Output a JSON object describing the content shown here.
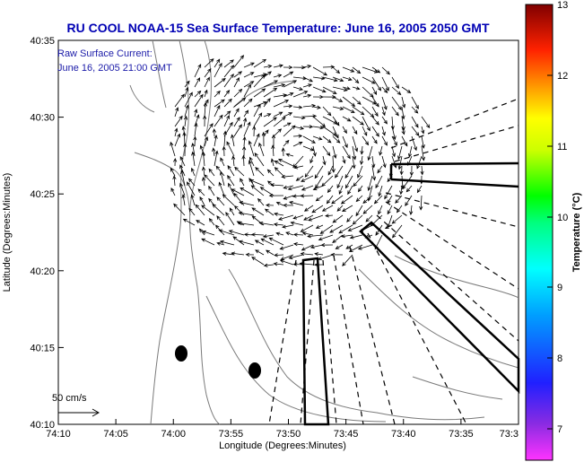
{
  "title": "RU COOL  NOAA-15  Sea Surface Temperature:  June 16, 2005 2050 GMT",
  "annotation": {
    "line1": "Raw Surface Current:",
    "line2": "June 16, 2005 21:00 GMT"
  },
  "scale_label": "50 cm/s",
  "x_axis": {
    "label": "Longitude (Degrees:Minutes)",
    "ticks": [
      "74:10",
      "74:05",
      "74:00",
      "73:55",
      "73:50",
      "73:45",
      "73:40",
      "73:35",
      "73:3"
    ]
  },
  "y_axis": {
    "label": "Latitude (Degrees:Minutes)",
    "ticks": [
      "40:35",
      "40:30",
      "40:25",
      "40:20",
      "40:15",
      "40:10"
    ]
  },
  "colorbar": {
    "label": "Temperature (°C)",
    "ticks": [
      "13",
      "12",
      "11",
      "10",
      "9",
      "8",
      "7"
    ],
    "colors": [
      "#ff00ff",
      "#7f00ff",
      "#0000ff",
      "#0080ff",
      "#00ffff",
      "#00ff80",
      "#00ff00",
      "#80ff00",
      "#ffff00",
      "#ff8000",
      "#ff0000",
      "#b00000",
      "#800000"
    ]
  }
}
